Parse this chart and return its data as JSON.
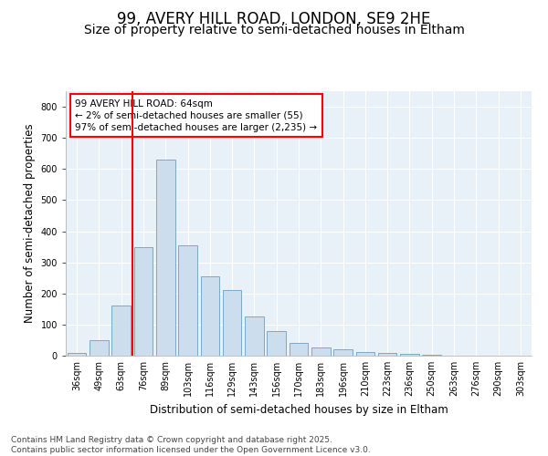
{
  "title1": "99, AVERY HILL ROAD, LONDON, SE9 2HE",
  "title2": "Size of property relative to semi-detached houses in Eltham",
  "xlabel": "Distribution of semi-detached houses by size in Eltham",
  "ylabel": "Number of semi-detached properties",
  "categories": [
    "36sqm",
    "49sqm",
    "63sqm",
    "76sqm",
    "89sqm",
    "103sqm",
    "116sqm",
    "129sqm",
    "143sqm",
    "156sqm",
    "170sqm",
    "183sqm",
    "196sqm",
    "210sqm",
    "223sqm",
    "236sqm",
    "250sqm",
    "263sqm",
    "276sqm",
    "290sqm",
    "303sqm"
  ],
  "values": [
    10,
    50,
    160,
    350,
    630,
    355,
    255,
    210,
    125,
    80,
    40,
    25,
    20,
    12,
    8,
    5,
    3,
    1,
    0,
    1,
    0
  ],
  "bar_color": "#ccdded",
  "bar_edge_color": "#7aaac8",
  "red_line_x": 2.5,
  "annotation_text": "99 AVERY HILL ROAD: 64sqm\n← 2% of semi-detached houses are smaller (55)\n97% of semi-detached houses are larger (2,235) →",
  "ylim": [
    0,
    850
  ],
  "yticks": [
    0,
    100,
    200,
    300,
    400,
    500,
    600,
    700,
    800
  ],
  "background_color": "#e8f0f8",
  "footer_text": "Contains HM Land Registry data © Crown copyright and database right 2025.\nContains public sector information licensed under the Open Government Licence v3.0.",
  "title_fontsize": 12,
  "subtitle_fontsize": 10,
  "axis_label_fontsize": 8.5,
  "tick_fontsize": 7,
  "annotation_fontsize": 7.5,
  "footer_fontsize": 6.5
}
